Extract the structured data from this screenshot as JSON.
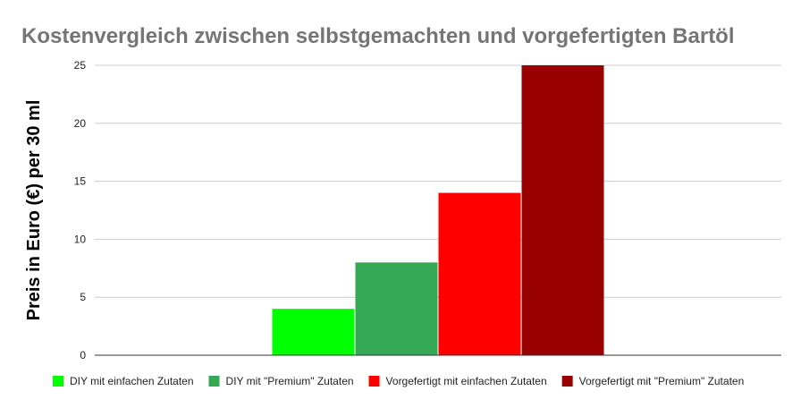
{
  "chart_data": {
    "type": "bar",
    "title": "Kostenvergleich zwischen selbstgemachten und vorgefertigten Bartöl",
    "xlabel": "",
    "ylabel": "Preis in Euro (€) per 30 ml",
    "ylim": [
      0,
      25
    ],
    "yticks": [
      "0",
      "5",
      "10",
      "15",
      "20",
      "25"
    ],
    "grid": true,
    "legend_position": "bottom",
    "categories": [
      ""
    ],
    "series": [
      {
        "name": "DIY mit einfachen Zutaten",
        "values": [
          4
        ],
        "color": "#00ff00"
      },
      {
        "name": "DIY mit \"Premium\" Zutaten",
        "values": [
          8
        ],
        "color": "#34a853"
      },
      {
        "name": "Vorgefertigt mit einfachen Zutaten",
        "values": [
          14
        ],
        "color": "#ff0000"
      },
      {
        "name": "Vorgefertigt mit \"Premium\" Zutaten",
        "values": [
          25
        ],
        "color": "#990000"
      }
    ]
  }
}
